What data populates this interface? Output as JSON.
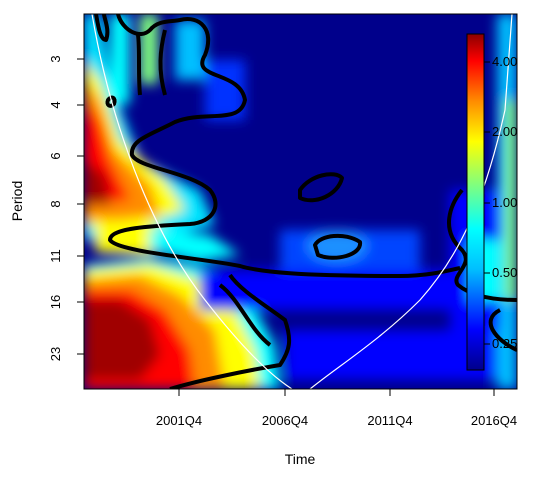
{
  "chart_data": {
    "type": "heatmap",
    "title": "",
    "xlabel": "Time",
    "ylabel": "Period",
    "x_ticks": [
      "2001Q4",
      "2006Q4",
      "2011Q4",
      "2016Q4"
    ],
    "y_ticks": [
      "3",
      "4",
      "6",
      "8",
      "11",
      "16",
      "23"
    ],
    "y_scale": "log2",
    "colorbar": {
      "ticks": [
        "4.00",
        "2.00",
        "1.00",
        "0.50",
        "0.25"
      ],
      "colors": [
        "#00008b",
        "#0000ff",
        "#00bfff",
        "#00ffff",
        "#7fff7f",
        "#ffff00",
        "#ff8c00",
        "#ff0000",
        "#8b0000"
      ]
    },
    "annotations": [
      "significance contours (black)",
      "cone of influence (white)"
    ]
  }
}
